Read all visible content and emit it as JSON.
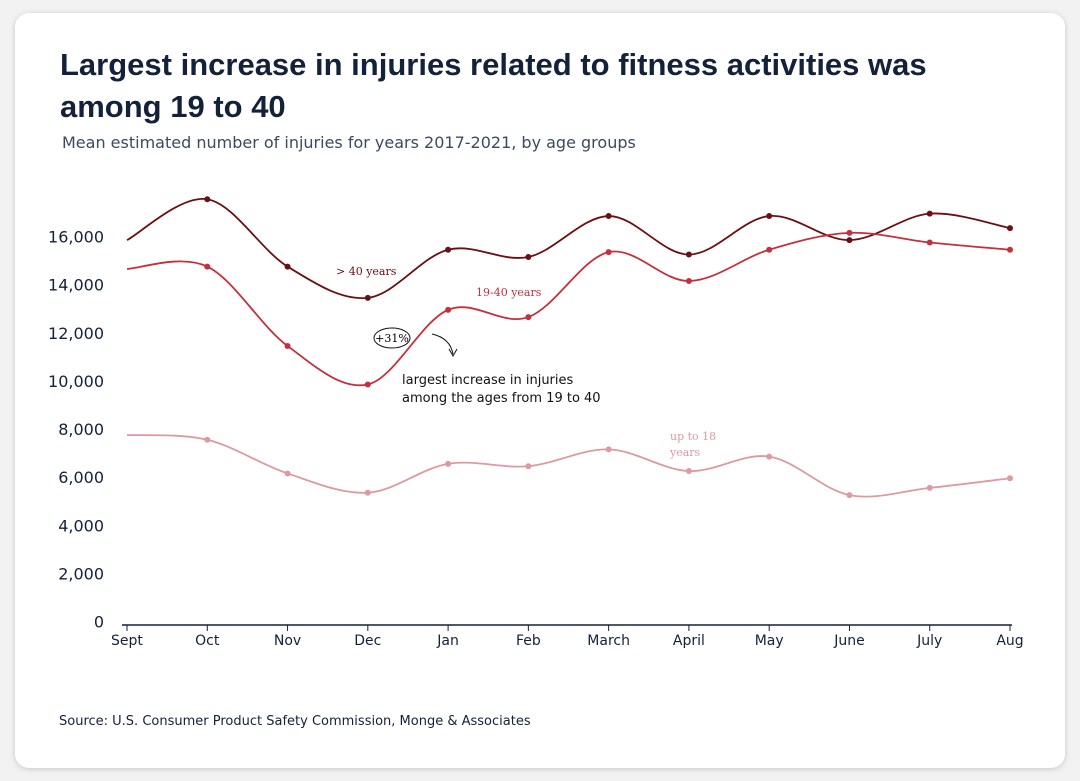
{
  "chart_data": {
    "type": "line",
    "title": "Largest increase in injuries related to fitness activities was among 19 to 40",
    "subtitle": "Mean estimated number of injuries for years 2017-2021, by age groups",
    "categories": [
      "Sept",
      "Oct",
      "Nov",
      "Dec",
      "Jan",
      "Feb",
      "March",
      "April",
      "May",
      "June",
      "July",
      "Aug"
    ],
    "series": [
      {
        "name": "> 40 years",
        "color": "#6b0f14",
        "values": [
          16000,
          17700,
          14900,
          13600,
          15600,
          15300,
          17000,
          15400,
          17000,
          16000,
          17100,
          16500
        ]
      },
      {
        "name": "19-40 years",
        "color": "#c4303d",
        "values": [
          14800,
          14900,
          11600,
          10000,
          13100,
          12800,
          15500,
          14300,
          15600,
          16300,
          15900,
          15600
        ]
      },
      {
        "name": "up to 18 years",
        "color": "#dd9aa0",
        "values": [
          7900,
          7700,
          6300,
          5500,
          6700,
          6600,
          7300,
          6400,
          7000,
          5400,
          5700,
          6100
        ]
      }
    ],
    "ylim": [
      0,
      18000
    ],
    "yticks": [
      0,
      {
        "value": 2000,
        "label": "2,000"
      },
      {
        "value": 4000,
        "label": "4,000"
      },
      {
        "value": 6000,
        "label": "6,000"
      },
      {
        "value": 8000,
        "label": "8,000"
      },
      {
        "value": 10000,
        "label": "10,000"
      },
      {
        "value": 12000,
        "label": "12,000"
      },
      {
        "value": 14000,
        "label": "14,000"
      },
      {
        "value": 16000,
        "label": "16,000"
      }
    ],
    "grid": false,
    "annotations": [
      "+31%",
      "largest increase in injuries among the ages from 19 to 40"
    ],
    "source": "Source: U.S. Consumer Product Safety Commission, Monge & Associates"
  }
}
